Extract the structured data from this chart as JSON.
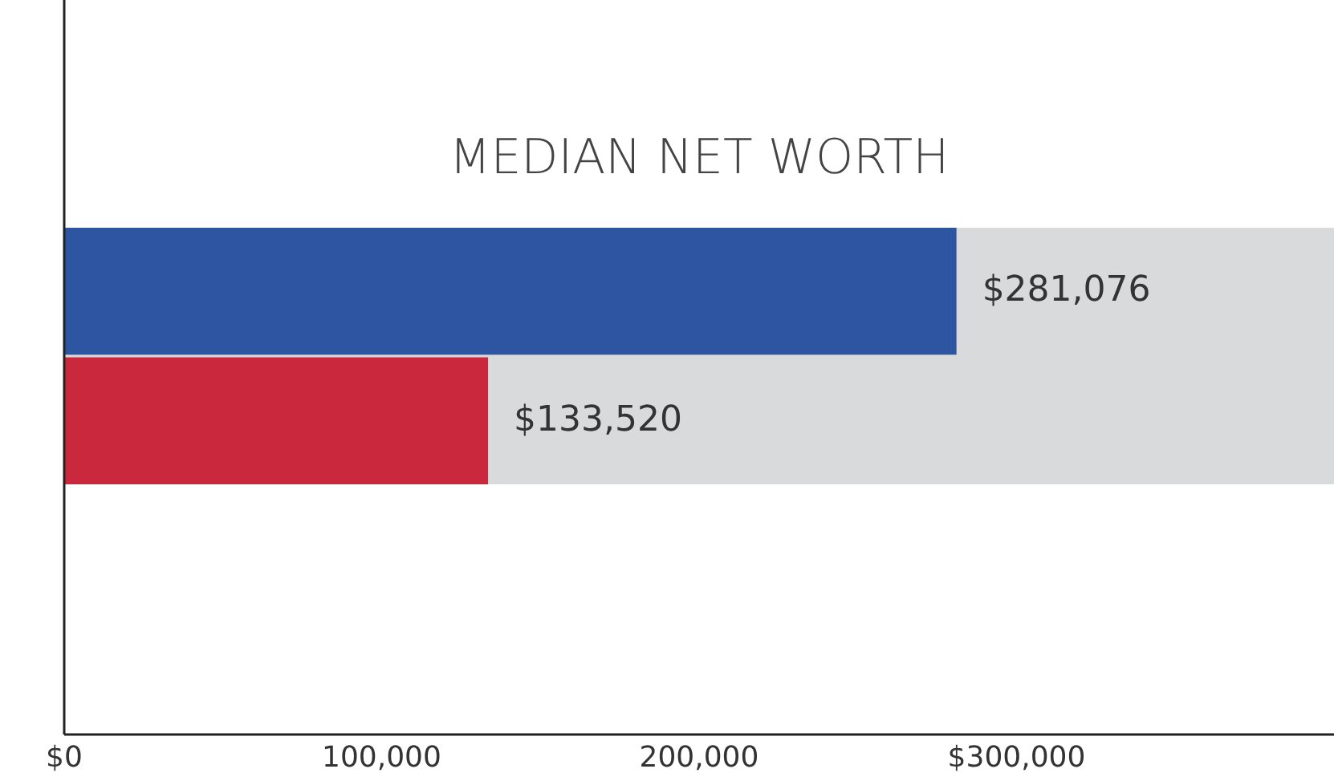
{
  "chart_data": {
    "type": "bar",
    "orientation": "horizontal",
    "title": "MEDIAN NET WORTH",
    "categories": [
      null,
      null
    ],
    "values": [
      281076,
      133520
    ],
    "colors": [
      "#2e55a1",
      "#c9283d"
    ],
    "value_labels": [
      "$281,076",
      "$133,520"
    ],
    "xlim": [
      0,
      400000
    ],
    "bands": [
      {
        "axis": "x",
        "from": 0,
        "to": 400000,
        "color": "#d9dadb"
      }
    ],
    "xticks": [
      {
        "value": 0,
        "label": "$0"
      },
      {
        "value": 100000,
        "label": "100,000"
      },
      {
        "value": 200000,
        "label": "200,000"
      },
      {
        "value": 300000,
        "label": "$300,000"
      }
    ]
  }
}
